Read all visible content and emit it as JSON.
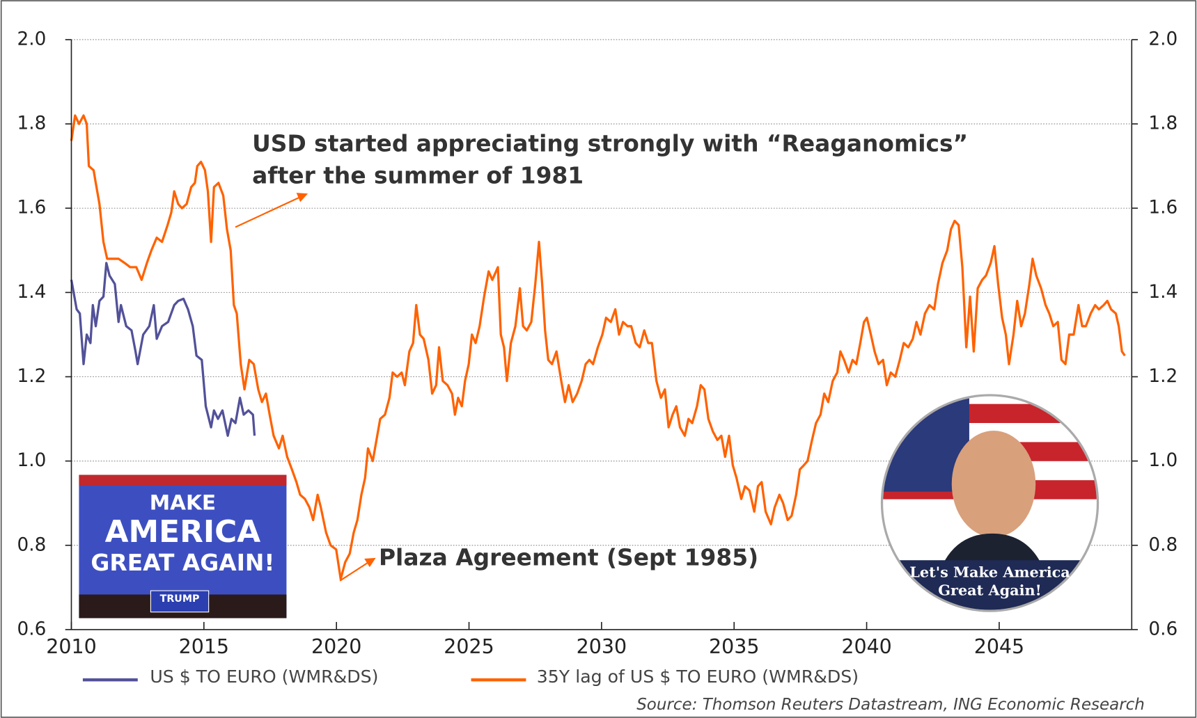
{
  "chart_data": {
    "type": "line",
    "annotations": [
      "USD started appreciating strongly with “Reaganomics”",
      "after the summer of 1981",
      "Plaza Agreement (Sept 1985)"
    ],
    "source": "Source: Thomson Reuters Datastream, ING Economic Research",
    "xlim": [
      2010,
      2050
    ],
    "xticks": [
      2010,
      2015,
      2020,
      2025,
      2030,
      2035,
      2040,
      2045
    ],
    "ylim": [
      0.6,
      2.0
    ],
    "yticks": [
      {
        "value": 0.6,
        "label": "0.6"
      },
      {
        "value": 0.8,
        "label": "0.8"
      },
      {
        "value": 1,
        "label": "1.0"
      },
      1.2,
      1.4,
      1.6,
      1.8,
      {
        "value": 2,
        "label": "2.0"
      }
    ],
    "y2lim": [
      0.6,
      2.0
    ],
    "y2ticks": [
      {
        "value": 0.6,
        "label": "0.6"
      },
      {
        "value": 0.8,
        "label": "0.8"
      },
      {
        "value": 1,
        "label": "1.0"
      },
      1.2,
      1.4,
      1.6,
      1.8,
      {
        "value": 2,
        "label": "2.0"
      }
    ],
    "grid": true,
    "series": [
      {
        "name": "US $ TO EURO (WMR&DS)",
        "color": "#525199",
        "x": [
          2010.0,
          2010.2,
          2010.32,
          2010.46,
          2010.58,
          2010.72,
          2010.81,
          2010.92,
          2011.06,
          2011.21,
          2011.32,
          2011.44,
          2011.64,
          2011.78,
          2011.87,
          2012.07,
          2012.27,
          2012.42,
          2012.5,
          2012.71,
          2012.94,
          2013.11,
          2013.22,
          2013.42,
          2013.65,
          2013.88,
          2014.03,
          2014.23,
          2014.4,
          2014.58,
          2014.72,
          2014.92,
          2015.07,
          2015.27,
          2015.38,
          2015.53,
          2015.7,
          2015.9,
          2016.04,
          2016.19,
          2016.36,
          2016.5,
          2016.68,
          2016.85,
          2016.91
        ],
        "values": [
          1.43,
          1.36,
          1.35,
          1.23,
          1.3,
          1.28,
          1.37,
          1.32,
          1.38,
          1.39,
          1.47,
          1.44,
          1.42,
          1.33,
          1.37,
          1.32,
          1.31,
          1.26,
          1.23,
          1.3,
          1.32,
          1.37,
          1.29,
          1.32,
          1.33,
          1.37,
          1.38,
          1.385,
          1.36,
          1.32,
          1.25,
          1.24,
          1.13,
          1.08,
          1.12,
          1.1,
          1.12,
          1.06,
          1.1,
          1.09,
          1.15,
          1.11,
          1.12,
          1.11,
          1.06
        ]
      },
      {
        "name": "35Y lag of US $ TO EURO (WMR&DS)",
        "color": "#ff6200",
        "x": [
          2010.0,
          2010.14,
          2010.29,
          2010.46,
          2010.58,
          2010.66,
          2010.84,
          2010.92,
          2011.06,
          2011.21,
          2011.35,
          2011.58,
          2011.78,
          2012.01,
          2012.22,
          2012.45,
          2012.65,
          2012.85,
          2013.02,
          2013.22,
          2013.42,
          2013.63,
          2013.77,
          2013.88,
          2014.03,
          2014.17,
          2014.35,
          2014.52,
          2014.66,
          2014.75,
          2014.89,
          2015.04,
          2015.15,
          2015.27,
          2015.38,
          2015.55,
          2015.73,
          2015.87,
          2016.01,
          2016.13,
          2016.24,
          2016.39,
          2016.53,
          2016.71,
          2016.88,
          2017.05,
          2017.19,
          2017.34,
          2017.48,
          2017.63,
          2017.83,
          2017.97,
          2018.14,
          2018.32,
          2018.49,
          2018.63,
          2018.81,
          2018.98,
          2019.12,
          2019.29,
          2019.41,
          2019.61,
          2019.78,
          2019.99,
          2020.16,
          2020.33,
          2020.5,
          2020.65,
          2020.79,
          2020.94,
          2021.08,
          2021.19,
          2021.37,
          2021.51,
          2021.65,
          2021.83,
          2022.0,
          2022.12,
          2022.29,
          2022.46,
          2022.58,
          2022.75,
          2022.89,
          2023.01,
          2023.15,
          2023.29,
          2023.47,
          2023.61,
          2023.76,
          2023.87,
          2024.01,
          2024.19,
          2024.36,
          2024.47,
          2024.59,
          2024.73,
          2024.85,
          2024.99,
          2025.11,
          2025.25,
          2025.4,
          2025.57,
          2025.74,
          2025.88,
          2026.09,
          2026.2,
          2026.32,
          2026.43,
          2026.58,
          2026.75,
          2026.92,
          2027.04,
          2027.18,
          2027.35,
          2027.5,
          2027.64,
          2027.76,
          2027.87,
          2027.99,
          2028.13,
          2028.3,
          2028.48,
          2028.62,
          2028.76,
          2028.91,
          2029.08,
          2029.25,
          2029.4,
          2029.54,
          2029.68,
          2029.86,
          2030.03,
          2030.17,
          2030.35,
          2030.52,
          2030.66,
          2030.81,
          2030.98,
          2031.12,
          2031.29,
          2031.44,
          2031.61,
          2031.76,
          2031.9,
          2032.07,
          2032.24,
          2032.39,
          2032.53,
          2032.68,
          2032.82,
          2032.96,
          2033.14,
          2033.28,
          2033.42,
          2033.6,
          2033.74,
          2033.88,
          2034.03,
          2034.2,
          2034.37,
          2034.52,
          2034.66,
          2034.81,
          2034.95,
          2035.09,
          2035.27,
          2035.41,
          2035.58,
          2035.76,
          2035.9,
          2036.04,
          2036.19,
          2036.39,
          2036.53,
          2036.71,
          2036.85,
          2037.02,
          2037.17,
          2037.34,
          2037.48,
          2037.63,
          2037.77,
          2037.94,
          2038.09,
          2038.26,
          2038.4,
          2038.55,
          2038.72,
          2038.89,
          2039.01,
          2039.15,
          2039.32,
          2039.47,
          2039.61,
          2039.76,
          2039.9,
          2040.01,
          2040.16,
          2040.3,
          2040.45,
          2040.62,
          2040.76,
          2040.91,
          2041.08,
          2041.25,
          2041.4,
          2041.57,
          2041.74,
          2041.88,
          2042.03,
          2042.2,
          2042.37,
          2042.55,
          2042.69,
          2042.86,
          2043.04,
          2043.18,
          2043.32,
          2043.47,
          2043.61,
          2043.76,
          2043.9,
          2044.04,
          2044.19,
          2044.36,
          2044.5,
          2044.68,
          2044.82,
          2044.96,
          2045.11,
          2045.25,
          2045.37,
          2045.54,
          2045.68,
          2045.83,
          2045.97,
          2046.14,
          2046.26,
          2046.4,
          2046.58,
          2046.75,
          2046.89,
          2047.04,
          2047.21,
          2047.35,
          2047.5,
          2047.64,
          2047.81,
          2047.99,
          2048.13,
          2048.27,
          2048.45,
          2048.62,
          2048.76,
          2048.94,
          2049.08,
          2049.22,
          2049.4,
          2049.51,
          2049.63,
          2049.74
        ],
        "values": [
          1.76,
          1.82,
          1.8,
          1.82,
          1.8,
          1.7,
          1.69,
          1.66,
          1.61,
          1.52,
          1.48,
          1.48,
          1.48,
          1.47,
          1.46,
          1.46,
          1.43,
          1.47,
          1.5,
          1.53,
          1.52,
          1.56,
          1.59,
          1.64,
          1.61,
          1.6,
          1.61,
          1.65,
          1.66,
          1.7,
          1.71,
          1.69,
          1.64,
          1.52,
          1.65,
          1.66,
          1.63,
          1.55,
          1.5,
          1.37,
          1.35,
          1.23,
          1.17,
          1.24,
          1.23,
          1.17,
          1.14,
          1.16,
          1.11,
          1.06,
          1.03,
          1.06,
          1.01,
          0.98,
          0.95,
          0.92,
          0.91,
          0.89,
          0.86,
          0.92,
          0.89,
          0.83,
          0.8,
          0.79,
          0.72,
          0.76,
          0.78,
          0.83,
          0.86,
          0.92,
          0.96,
          1.03,
          1.0,
          1.05,
          1.1,
          1.11,
          1.15,
          1.21,
          1.2,
          1.21,
          1.18,
          1.26,
          1.28,
          1.37,
          1.3,
          1.29,
          1.24,
          1.16,
          1.18,
          1.27,
          1.19,
          1.18,
          1.16,
          1.11,
          1.15,
          1.13,
          1.19,
          1.23,
          1.3,
          1.28,
          1.32,
          1.39,
          1.45,
          1.43,
          1.46,
          1.3,
          1.27,
          1.19,
          1.28,
          1.32,
          1.41,
          1.32,
          1.31,
          1.33,
          1.42,
          1.52,
          1.42,
          1.31,
          1.24,
          1.23,
          1.26,
          1.19,
          1.14,
          1.18,
          1.14,
          1.16,
          1.19,
          1.23,
          1.24,
          1.23,
          1.27,
          1.3,
          1.34,
          1.33,
          1.36,
          1.3,
          1.33,
          1.32,
          1.32,
          1.28,
          1.27,
          1.31,
          1.28,
          1.28,
          1.19,
          1.15,
          1.17,
          1.08,
          1.11,
          1.13,
          1.08,
          1.06,
          1.1,
          1.09,
          1.13,
          1.18,
          1.17,
          1.1,
          1.07,
          1.05,
          1.06,
          1.01,
          1.06,
          0.99,
          0.96,
          0.91,
          0.94,
          0.93,
          0.88,
          0.94,
          0.95,
          0.88,
          0.85,
          0.89,
          0.92,
          0.9,
          0.86,
          0.87,
          0.92,
          0.98,
          0.99,
          1.0,
          1.05,
          1.09,
          1.11,
          1.16,
          1.14,
          1.19,
          1.21,
          1.26,
          1.24,
          1.21,
          1.24,
          1.23,
          1.28,
          1.33,
          1.34,
          1.3,
          1.26,
          1.23,
          1.24,
          1.18,
          1.21,
          1.2,
          1.24,
          1.28,
          1.27,
          1.29,
          1.33,
          1.3,
          1.35,
          1.37,
          1.36,
          1.42,
          1.47,
          1.5,
          1.55,
          1.57,
          1.56,
          1.46,
          1.27,
          1.39,
          1.26,
          1.41,
          1.43,
          1.44,
          1.47,
          1.51,
          1.42,
          1.34,
          1.3,
          1.23,
          1.3,
          1.38,
          1.32,
          1.35,
          1.42,
          1.48,
          1.44,
          1.41,
          1.37,
          1.35,
          1.32,
          1.33,
          1.24,
          1.23,
          1.3,
          1.3,
          1.37,
          1.32,
          1.32,
          1.35,
          1.37,
          1.36,
          1.37,
          1.38,
          1.36,
          1.35,
          1.32,
          1.26,
          1.25
        ]
      }
    ]
  },
  "left_image_text": [
    "MAKE",
    "AMERICA",
    "GREAT AGAIN!",
    "TRUMP"
  ],
  "right_image_text": [
    "Let's Make America",
    "Great Again!"
  ]
}
